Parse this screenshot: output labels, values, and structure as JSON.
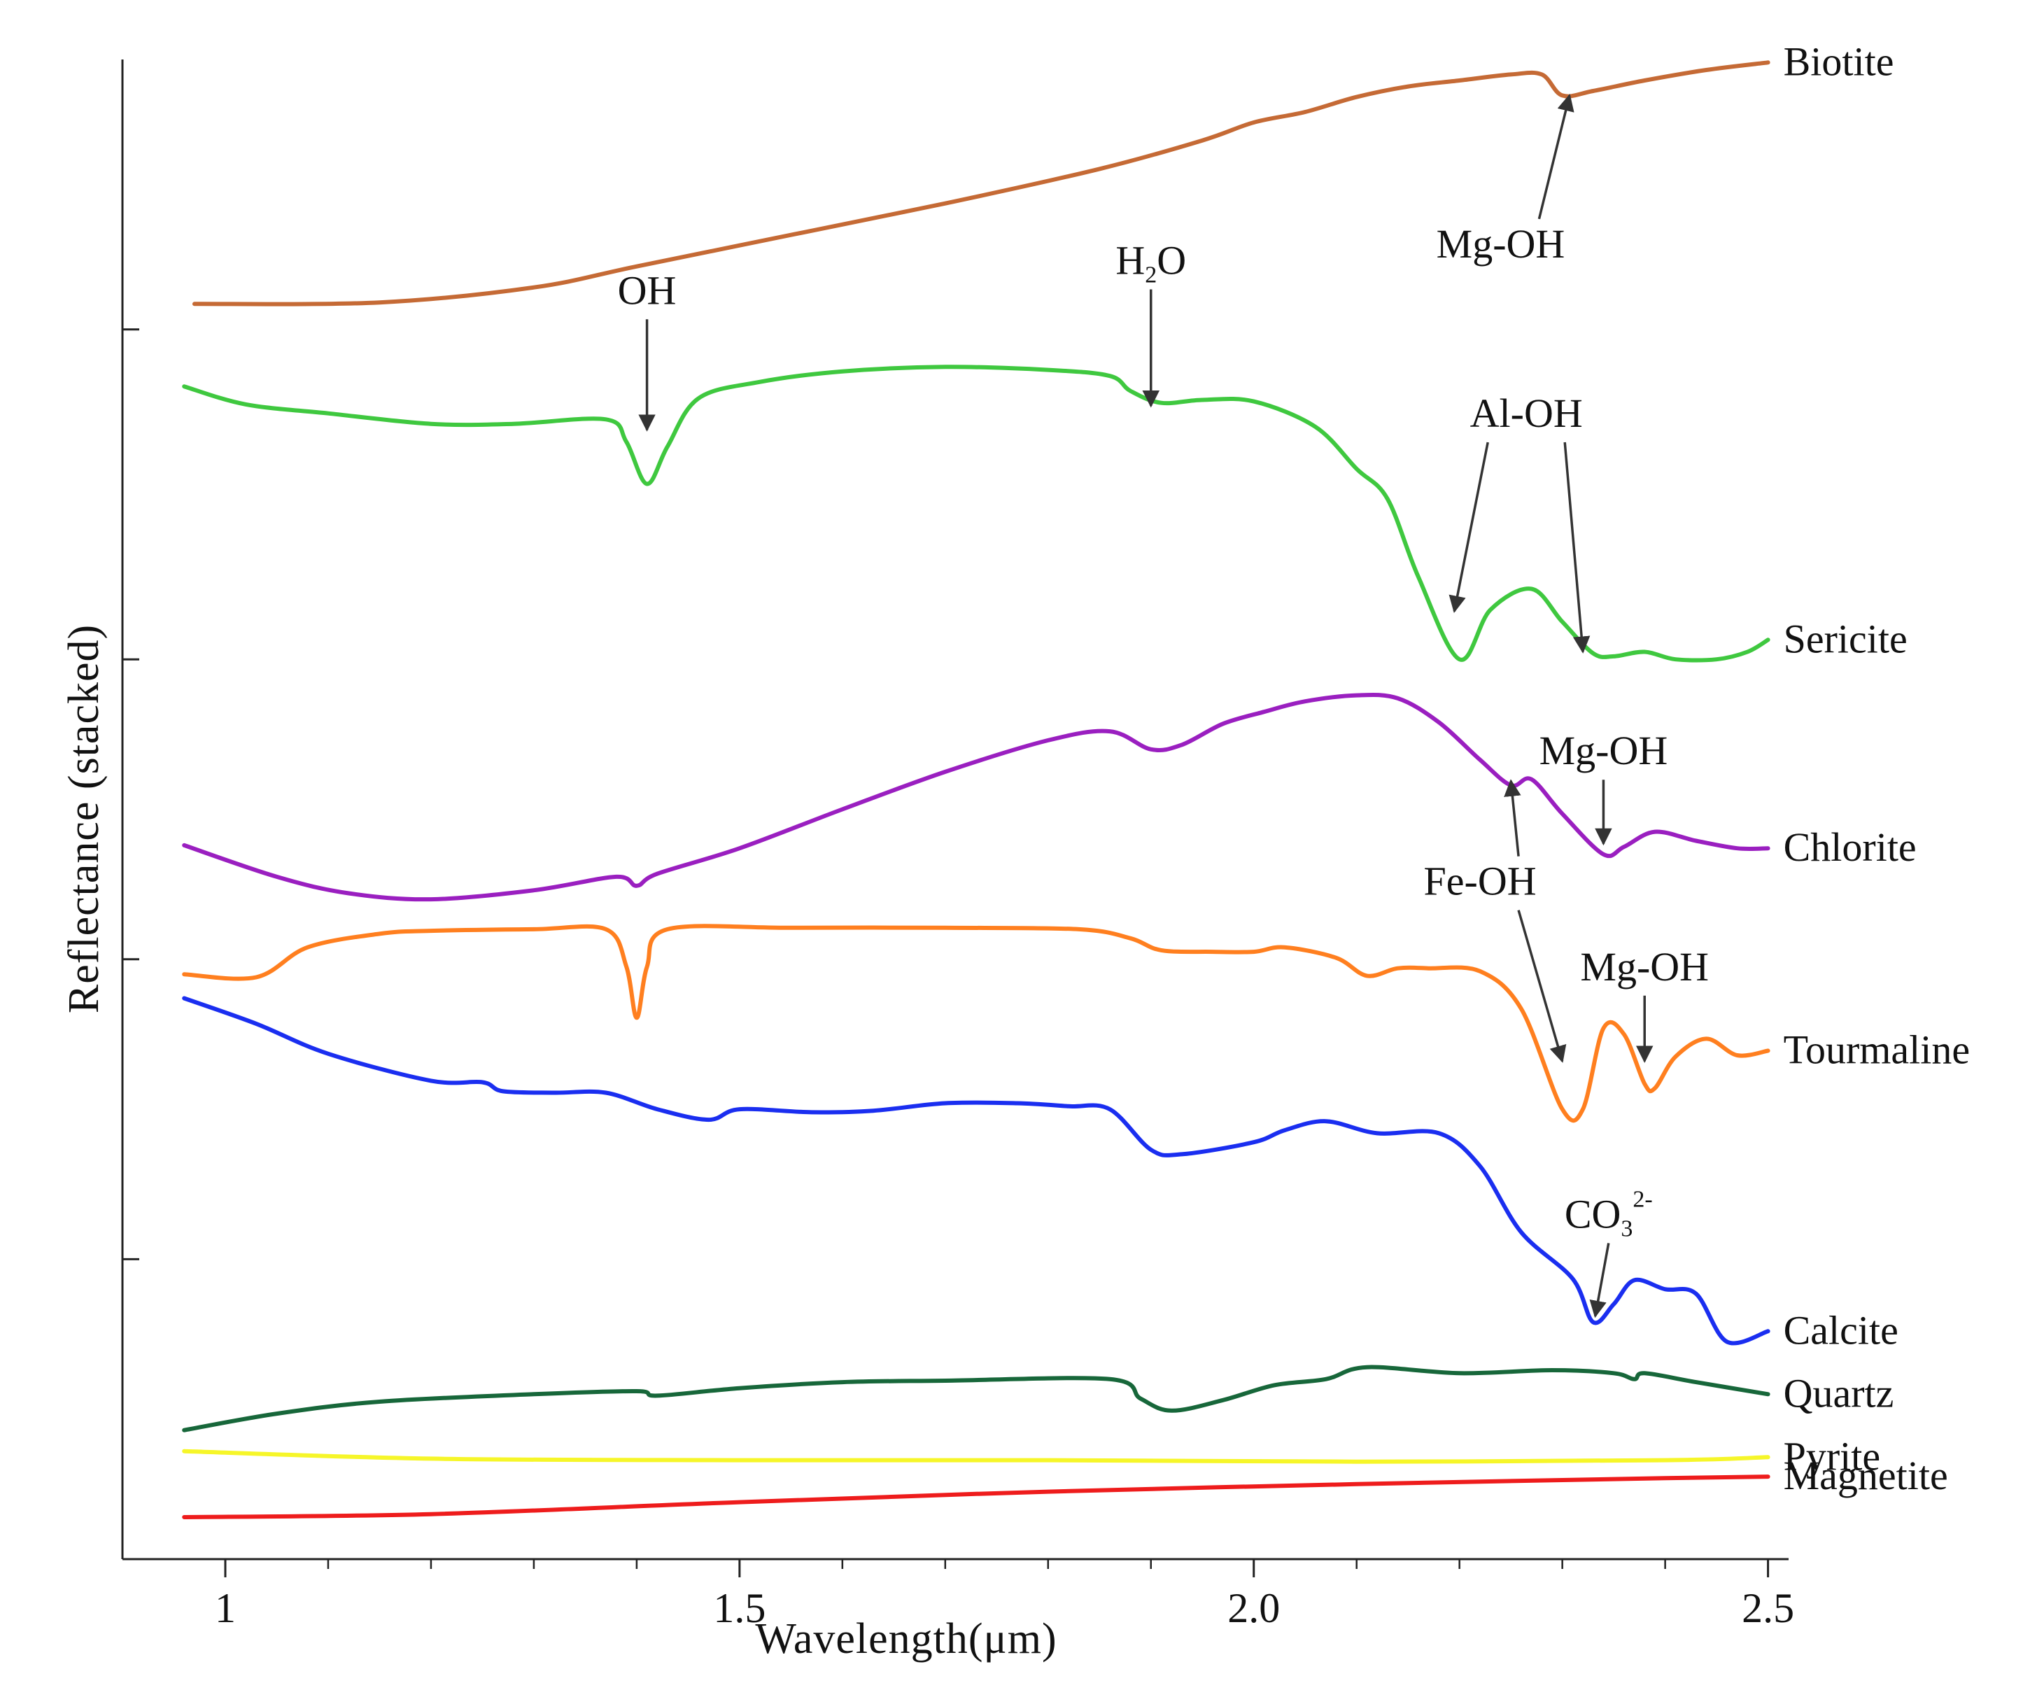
{
  "chart_data": {
    "type": "line",
    "title": "",
    "xlabel": "Wavelength(μm)",
    "ylabel": "Reflectance (stacked)",
    "xlim": [
      0.9,
      2.52
    ],
    "ylim": [
      0,
      1.0
    ],
    "grid": false,
    "legend": "none (labels at right end of each curve)",
    "x_ticks": [
      1.0,
      1.5,
      2.0,
      2.5
    ],
    "x_tick_labels": [
      "1",
      "1.5",
      "2.0",
      "2.5"
    ],
    "y_ticks": [
      0.2,
      0.4,
      0.6,
      0.82
    ],
    "series": [
      {
        "name": "Biotite",
        "color": "#c56a35",
        "points": [
          [
            0.97,
            0.837
          ],
          [
            1.15,
            0.838
          ],
          [
            1.3,
            0.848
          ],
          [
            1.4,
            0.862
          ],
          [
            1.55,
            0.883
          ],
          [
            1.7,
            0.904
          ],
          [
            1.85,
            0.927
          ],
          [
            1.95,
            0.946
          ],
          [
            2.0,
            0.958
          ],
          [
            2.05,
            0.965
          ],
          [
            2.1,
            0.975
          ],
          [
            2.15,
            0.982
          ],
          [
            2.2,
            0.986
          ],
          [
            2.25,
            0.99
          ],
          [
            2.28,
            0.99
          ],
          [
            2.3,
            0.976
          ],
          [
            2.33,
            0.979
          ],
          [
            2.38,
            0.986
          ],
          [
            2.44,
            0.993
          ],
          [
            2.5,
            0.998
          ]
        ]
      },
      {
        "name": "Sericite",
        "color": "#3fc83f",
        "points": [
          [
            0.96,
            0.782
          ],
          [
            1.02,
            0.77
          ],
          [
            1.1,
            0.764
          ],
          [
            1.2,
            0.757
          ],
          [
            1.28,
            0.757
          ],
          [
            1.37,
            0.76
          ],
          [
            1.39,
            0.745
          ],
          [
            1.41,
            0.717
          ],
          [
            1.43,
            0.742
          ],
          [
            1.46,
            0.774
          ],
          [
            1.52,
            0.785
          ],
          [
            1.6,
            0.792
          ],
          [
            1.7,
            0.795
          ],
          [
            1.8,
            0.793
          ],
          [
            1.86,
            0.789
          ],
          [
            1.88,
            0.779
          ],
          [
            1.91,
            0.771
          ],
          [
            1.95,
            0.773
          ],
          [
            2.0,
            0.772
          ],
          [
            2.06,
            0.755
          ],
          [
            2.1,
            0.727
          ],
          [
            2.13,
            0.707
          ],
          [
            2.16,
            0.655
          ],
          [
            2.2,
            0.6
          ],
          [
            2.23,
            0.633
          ],
          [
            2.27,
            0.647
          ],
          [
            2.3,
            0.625
          ],
          [
            2.33,
            0.604
          ],
          [
            2.35,
            0.602
          ],
          [
            2.38,
            0.605
          ],
          [
            2.41,
            0.6
          ],
          [
            2.45,
            0.6
          ],
          [
            2.48,
            0.605
          ],
          [
            2.5,
            0.613
          ]
        ]
      },
      {
        "name": "Chlorite",
        "color": "#9a1fc0",
        "points": [
          [
            0.96,
            0.476
          ],
          [
            1.05,
            0.455
          ],
          [
            1.12,
            0.444
          ],
          [
            1.2,
            0.44
          ],
          [
            1.3,
            0.446
          ],
          [
            1.38,
            0.455
          ],
          [
            1.4,
            0.449
          ],
          [
            1.42,
            0.457
          ],
          [
            1.5,
            0.474
          ],
          [
            1.6,
            0.5
          ],
          [
            1.7,
            0.525
          ],
          [
            1.8,
            0.546
          ],
          [
            1.86,
            0.552
          ],
          [
            1.9,
            0.54
          ],
          [
            1.93,
            0.543
          ],
          [
            1.97,
            0.557
          ],
          [
            2.01,
            0.565
          ],
          [
            2.05,
            0.572
          ],
          [
            2.1,
            0.576
          ],
          [
            2.14,
            0.574
          ],
          [
            2.18,
            0.558
          ],
          [
            2.22,
            0.533
          ],
          [
            2.25,
            0.516
          ],
          [
            2.27,
            0.52
          ],
          [
            2.3,
            0.497
          ],
          [
            2.34,
            0.47
          ],
          [
            2.36,
            0.475
          ],
          [
            2.39,
            0.485
          ],
          [
            2.43,
            0.479
          ],
          [
            2.47,
            0.474
          ],
          [
            2.5,
            0.474
          ]
        ]
      },
      {
        "name": "Tourmaline",
        "color": "#ff7f1f",
        "points": [
          [
            0.96,
            0.39
          ],
          [
            1.03,
            0.388
          ],
          [
            1.08,
            0.408
          ],
          [
            1.15,
            0.417
          ],
          [
            1.2,
            0.419
          ],
          [
            1.3,
            0.42
          ],
          [
            1.37,
            0.42
          ],
          [
            1.39,
            0.395
          ],
          [
            1.4,
            0.361
          ],
          [
            1.41,
            0.395
          ],
          [
            1.43,
            0.42
          ],
          [
            1.55,
            0.421
          ],
          [
            1.7,
            0.421
          ],
          [
            1.83,
            0.42
          ],
          [
            1.88,
            0.414
          ],
          [
            1.91,
            0.406
          ],
          [
            1.96,
            0.405
          ],
          [
            2.0,
            0.405
          ],
          [
            2.03,
            0.408
          ],
          [
            2.08,
            0.401
          ],
          [
            2.11,
            0.389
          ],
          [
            2.14,
            0.394
          ],
          [
            2.17,
            0.394
          ],
          [
            2.22,
            0.392
          ],
          [
            2.26,
            0.367
          ],
          [
            2.3,
            0.3
          ],
          [
            2.32,
            0.3
          ],
          [
            2.34,
            0.354
          ],
          [
            2.36,
            0.35
          ],
          [
            2.38,
            0.317
          ],
          [
            2.39,
            0.314
          ],
          [
            2.41,
            0.335
          ],
          [
            2.44,
            0.347
          ],
          [
            2.47,
            0.336
          ],
          [
            2.5,
            0.339
          ]
        ]
      },
      {
        "name": "Calcite",
        "color": "#1a2ef0",
        "points": [
          [
            0.96,
            0.374
          ],
          [
            1.03,
            0.357
          ],
          [
            1.1,
            0.337
          ],
          [
            1.2,
            0.319
          ],
          [
            1.25,
            0.318
          ],
          [
            1.27,
            0.312
          ],
          [
            1.32,
            0.311
          ],
          [
            1.37,
            0.311
          ],
          [
            1.42,
            0.3
          ],
          [
            1.47,
            0.293
          ],
          [
            1.5,
            0.3
          ],
          [
            1.57,
            0.298
          ],
          [
            1.63,
            0.299
          ],
          [
            1.7,
            0.304
          ],
          [
            1.77,
            0.304
          ],
          [
            1.82,
            0.302
          ],
          [
            1.86,
            0.3
          ],
          [
            1.9,
            0.273
          ],
          [
            1.93,
            0.27
          ],
          [
            2.0,
            0.278
          ],
          [
            2.03,
            0.286
          ],
          [
            2.07,
            0.292
          ],
          [
            2.12,
            0.284
          ],
          [
            2.18,
            0.284
          ],
          [
            2.22,
            0.262
          ],
          [
            2.26,
            0.218
          ],
          [
            2.31,
            0.187
          ],
          [
            2.33,
            0.158
          ],
          [
            2.35,
            0.17
          ],
          [
            2.37,
            0.186
          ],
          [
            2.4,
            0.18
          ],
          [
            2.43,
            0.177
          ],
          [
            2.46,
            0.145
          ],
          [
            2.5,
            0.152
          ]
        ]
      },
      {
        "name": "Quartz",
        "color": "#17673a",
        "points": [
          [
            0.96,
            0.086
          ],
          [
            1.05,
            0.097
          ],
          [
            1.15,
            0.105
          ],
          [
            1.3,
            0.11
          ],
          [
            1.4,
            0.112
          ],
          [
            1.42,
            0.109
          ],
          [
            1.5,
            0.114
          ],
          [
            1.6,
            0.118
          ],
          [
            1.7,
            0.119
          ],
          [
            1.86,
            0.12
          ],
          [
            1.89,
            0.107
          ],
          [
            1.92,
            0.099
          ],
          [
            1.97,
            0.106
          ],
          [
            2.02,
            0.116
          ],
          [
            2.07,
            0.12
          ],
          [
            2.11,
            0.128
          ],
          [
            2.2,
            0.124
          ],
          [
            2.29,
            0.126
          ],
          [
            2.35,
            0.124
          ],
          [
            2.37,
            0.12
          ],
          [
            2.38,
            0.124
          ],
          [
            2.43,
            0.118
          ],
          [
            2.5,
            0.11
          ]
        ]
      },
      {
        "name": "Pyrite",
        "color": "#f6f629",
        "points": [
          [
            0.96,
            0.072
          ],
          [
            1.2,
            0.067
          ],
          [
            1.5,
            0.066
          ],
          [
            1.8,
            0.066
          ],
          [
            2.1,
            0.065
          ],
          [
            2.4,
            0.066
          ],
          [
            2.5,
            0.068
          ]
        ]
      },
      {
        "name": "Magnetite",
        "color": "#ee1c1c",
        "points": [
          [
            0.96,
            0.028
          ],
          [
            1.2,
            0.03
          ],
          [
            1.5,
            0.038
          ],
          [
            1.8,
            0.045
          ],
          [
            2.1,
            0.05
          ],
          [
            2.4,
            0.054
          ],
          [
            2.5,
            0.055
          ]
        ]
      }
    ],
    "annotations": [
      {
        "text": "Mg-OH",
        "sub": "",
        "sup": "",
        "target": [
          2.307,
          0.976
        ],
        "label_pos": [
          2.24,
          0.868
        ]
      },
      {
        "text": "OH",
        "sub": "",
        "sup": "",
        "target": [
          1.41,
          0.753
        ],
        "label_pos": [
          1.41,
          0.837
        ]
      },
      {
        "text": "H",
        "sub": "2",
        "sup": "",
        "after": "O",
        "target": [
          1.9,
          0.769
        ],
        "label_pos": [
          1.9,
          0.857
        ]
      },
      {
        "text": "Al-OH",
        "sub": "",
        "sup": "",
        "target": [
          2.195,
          0.632
        ],
        "label_pos": [
          2.265,
          0.755
        ]
      },
      {
        "text": "Al-OH",
        "sub": "",
        "sup": "",
        "target": [
          2.32,
          0.605
        ],
        "label_pos": [
          2.265,
          0.755
        ]
      },
      {
        "text": "Mg-OH",
        "sub": "",
        "sup": "",
        "target": [
          2.34,
          0.477
        ],
        "label_pos": [
          2.34,
          0.53
        ]
      },
      {
        "text": "Fe-OH",
        "sub": "",
        "sup": "",
        "target": [
          2.25,
          0.519
        ],
        "label_pos": [
          2.22,
          0.443
        ]
      },
      {
        "text": "Fe-OH",
        "sub": "",
        "sup": "",
        "target": [
          2.3,
          0.332
        ],
        "label_pos": [
          2.22,
          0.443
        ]
      },
      {
        "text": "Mg-OH",
        "sub": "",
        "sup": "",
        "target": [
          2.38,
          0.332
        ],
        "label_pos": [
          2.38,
          0.386
        ]
      },
      {
        "text": "CO",
        "sub": "3",
        "sup": "2-",
        "target": [
          2.332,
          0.162
        ],
        "label_pos": [
          2.345,
          0.221
        ]
      }
    ]
  }
}
